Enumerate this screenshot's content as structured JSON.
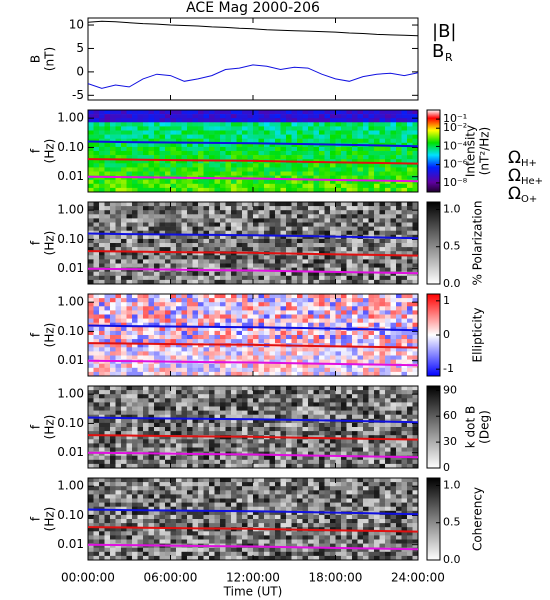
{
  "chart_data": {
    "type": "multi-panel",
    "title": "ACE Mag 2000-206",
    "xlabel": "Time (UT)",
    "xlim": [
      0,
      24
    ],
    "xticks": [
      {
        "value": 0,
        "label": "00:00:00"
      },
      {
        "value": 6,
        "label": "06:00:00"
      },
      {
        "value": 12,
        "label": "12:00:00"
      },
      {
        "value": 18,
        "label": "18:00:00"
      },
      {
        "value": 24,
        "label": "24:00:00"
      }
    ],
    "panels": [
      {
        "type": "line",
        "ylabel": [
          "B",
          "(nT)"
        ],
        "ylim": [
          -6,
          11.5
        ],
        "yticks": [
          -5,
          0,
          5,
          10
        ],
        "series": [
          {
            "name": "|B|",
            "color": "#000000",
            "x": [
              0,
              1,
              2,
              3,
              4,
              5,
              6,
              7,
              8,
              9,
              10,
              11,
              12,
              13,
              14,
              15,
              16,
              17,
              18,
              19,
              20,
              21,
              22,
              23,
              24
            ],
            "values": [
              10.6,
              10.8,
              10.7,
              10.5,
              10.3,
              10.2,
              10.0,
              9.9,
              9.8,
              9.6,
              9.5,
              9.3,
              9.2,
              9.0,
              8.9,
              8.8,
              8.7,
              8.6,
              8.5,
              8.3,
              8.2,
              8.0,
              7.9,
              7.8,
              7.7
            ]
          },
          {
            "name": "B",
            "subscript": "R",
            "color": "#1010e0",
            "x": [
              0,
              1,
              2,
              3,
              4,
              5,
              6,
              7,
              8,
              9,
              10,
              11,
              12,
              13,
              14,
              15,
              16,
              17,
              18,
              19,
              20,
              21,
              22,
              23,
              24
            ],
            "values": [
              -2.5,
              -3.5,
              -2.8,
              -3.2,
              -1.5,
              -0.5,
              -0.8,
              -2.0,
              -1.5,
              -0.8,
              0.5,
              0.8,
              1.5,
              1.2,
              0.5,
              1.0,
              0.8,
              -0.5,
              -1.5,
              -2.0,
              -1.0,
              -0.5,
              -0.3,
              -0.8,
              -0.2
            ]
          }
        ]
      },
      {
        "type": "spectrogram",
        "ylabel": [
          "f",
          "(Hz)"
        ],
        "ylog": true,
        "ylim": [
          0.003,
          1.9
        ],
        "yticks": [
          {
            "value": 1,
            "label": "1.00"
          },
          {
            "value": 0.1,
            "label": "0.10"
          },
          {
            "value": 0.01,
            "label": "0.01"
          }
        ],
        "colormap": "rainbow",
        "clog": true,
        "clim": [
          1e-09,
          1
        ],
        "cticks": [
          {
            "value": 0.1,
            "label": "10⁻¹"
          },
          {
            "value": 0.01,
            "label": "10⁻²"
          },
          {
            "value": 0.0001,
            "label": "10⁻⁴"
          },
          {
            "value": 1e-06,
            "label": "10⁻⁶"
          },
          {
            "value": 1e-08,
            "label": "10⁻⁸"
          }
        ],
        "clabel": [
          "Intensity",
          "(nT²/Hz)"
        ],
        "series": [
          {
            "name": "Ω",
            "subscript": "H+",
            "color": "#1010e0",
            "x": [
              0,
              4,
              8,
              12,
              16,
              20,
              24
            ],
            "values": [
              0.16,
              0.15,
              0.145,
              0.14,
              0.13,
              0.12,
              0.11
            ]
          },
          {
            "name": "Ω",
            "subscript": "He+",
            "color": "#e01010",
            "x": [
              0,
              4,
              8,
              12,
              16,
              20,
              24
            ],
            "values": [
              0.04,
              0.038,
              0.036,
              0.035,
              0.032,
              0.03,
              0.028
            ]
          },
          {
            "name": "Ω",
            "subscript": "O+",
            "color": "#e010e0",
            "x": [
              0,
              4,
              8,
              12,
              16,
              20,
              24
            ],
            "values": [
              0.01,
              0.0095,
              0.009,
              0.0087,
              0.008,
              0.0075,
              0.007
            ]
          }
        ]
      },
      {
        "type": "spectrogram",
        "ylabel": [
          "f",
          "(Hz)"
        ],
        "ylog": true,
        "ylim": [
          0.003,
          1.9
        ],
        "yticks": [
          {
            "value": 1,
            "label": "1.00"
          },
          {
            "value": 0.1,
            "label": "0.10"
          },
          {
            "value": 0.01,
            "label": "0.01"
          }
        ],
        "colormap": "gray",
        "clim": [
          0,
          1.1
        ],
        "cticks": [
          {
            "value": 1,
            "label": "1.0"
          },
          0.5,
          {
            "value": 0,
            "label": "0.0"
          }
        ],
        "clabel": [
          "% Polarization"
        ],
        "series": [
          {
            "color": "#1010e0",
            "x": [
              0,
              4,
              8,
              12,
              16,
              20,
              24
            ],
            "values": [
              0.16,
              0.15,
              0.145,
              0.14,
              0.13,
              0.12,
              0.11
            ]
          },
          {
            "color": "#e01010",
            "x": [
              0,
              4,
              8,
              12,
              16,
              20,
              24
            ],
            "values": [
              0.04,
              0.038,
              0.036,
              0.035,
              0.032,
              0.03,
              0.028
            ]
          },
          {
            "color": "#e010e0",
            "x": [
              0,
              4,
              8,
              12,
              16,
              20,
              24
            ],
            "values": [
              0.01,
              0.0095,
              0.009,
              0.0087,
              0.008,
              0.0075,
              0.007
            ]
          }
        ]
      },
      {
        "type": "spectrogram",
        "ylabel": [
          "f",
          "(Hz)"
        ],
        "ylog": true,
        "ylim": [
          0.003,
          1.9
        ],
        "yticks": [
          {
            "value": 1,
            "label": "1.00"
          },
          {
            "value": 0.1,
            "label": "0.10"
          },
          {
            "value": 0.01,
            "label": "0.01"
          }
        ],
        "colormap": "redblue",
        "clim": [
          -1.2,
          1.2
        ],
        "cticks": [
          1,
          0,
          -1
        ],
        "clabel": [
          "Ellipticity"
        ],
        "series": [
          {
            "color": "#1010e0",
            "x": [
              0,
              4,
              8,
              12,
              16,
              20,
              24
            ],
            "values": [
              0.16,
              0.15,
              0.145,
              0.14,
              0.13,
              0.12,
              0.11
            ]
          },
          {
            "color": "#e01010",
            "x": [
              0,
              4,
              8,
              12,
              16,
              20,
              24
            ],
            "values": [
              0.04,
              0.038,
              0.036,
              0.035,
              0.032,
              0.03,
              0.028
            ]
          },
          {
            "color": "#e010e0",
            "x": [
              0,
              4,
              8,
              12,
              16,
              20,
              24
            ],
            "values": [
              0.01,
              0.0095,
              0.009,
              0.0087,
              0.008,
              0.0075,
              0.007
            ]
          }
        ]
      },
      {
        "type": "spectrogram",
        "ylabel": [
          "f",
          "(Hz)"
        ],
        "ylog": true,
        "ylim": [
          0.003,
          1.9
        ],
        "yticks": [
          {
            "value": 1,
            "label": "1.00"
          },
          {
            "value": 0.1,
            "label": "0.10"
          },
          {
            "value": 0.01,
            "label": "0.01"
          }
        ],
        "colormap": "gray",
        "clim": [
          0,
          95
        ],
        "cticks": [
          90,
          60,
          30,
          0
        ],
        "clabel": [
          "k dot B",
          "(Deg)"
        ],
        "series": [
          {
            "color": "#1010e0",
            "x": [
              0,
              4,
              8,
              12,
              16,
              20,
              24
            ],
            "values": [
              0.16,
              0.15,
              0.145,
              0.14,
              0.13,
              0.12,
              0.11
            ]
          },
          {
            "color": "#e01010",
            "x": [
              0,
              4,
              8,
              12,
              16,
              20,
              24
            ],
            "values": [
              0.04,
              0.038,
              0.036,
              0.035,
              0.032,
              0.03,
              0.028
            ]
          },
          {
            "color": "#e010e0",
            "x": [
              0,
              4,
              8,
              12,
              16,
              20,
              24
            ],
            "values": [
              0.01,
              0.0095,
              0.009,
              0.0087,
              0.008,
              0.0075,
              0.007
            ]
          }
        ]
      },
      {
        "type": "spectrogram",
        "ylabel": [
          "f",
          "(Hz)"
        ],
        "ylog": true,
        "ylim": [
          0.003,
          1.9
        ],
        "yticks": [
          {
            "value": 1,
            "label": "1.00"
          },
          {
            "value": 0.1,
            "label": "0.10"
          },
          {
            "value": 0.01,
            "label": "0.01"
          }
        ],
        "colormap": "gray",
        "clim": [
          0,
          1.1
        ],
        "cticks": [
          {
            "value": 1,
            "label": "1.0"
          },
          0.5,
          {
            "value": 0,
            "label": "0.0"
          }
        ],
        "clabel": [
          "Coherency"
        ],
        "series": [
          {
            "color": "#1010e0",
            "x": [
              0,
              4,
              8,
              12,
              16,
              20,
              24
            ],
            "values": [
              0.16,
              0.15,
              0.145,
              0.14,
              0.13,
              0.12,
              0.11
            ]
          },
          {
            "color": "#e01010",
            "x": [
              0,
              4,
              8,
              12,
              16,
              20,
              24
            ],
            "values": [
              0.04,
              0.038,
              0.036,
              0.035,
              0.032,
              0.03,
              0.028
            ]
          },
          {
            "color": "#e010e0",
            "x": [
              0,
              4,
              8,
              12,
              16,
              20,
              24
            ],
            "values": [
              0.01,
              0.0095,
              0.009,
              0.0087,
              0.008,
              0.0075,
              0.007
            ]
          }
        ]
      }
    ]
  }
}
